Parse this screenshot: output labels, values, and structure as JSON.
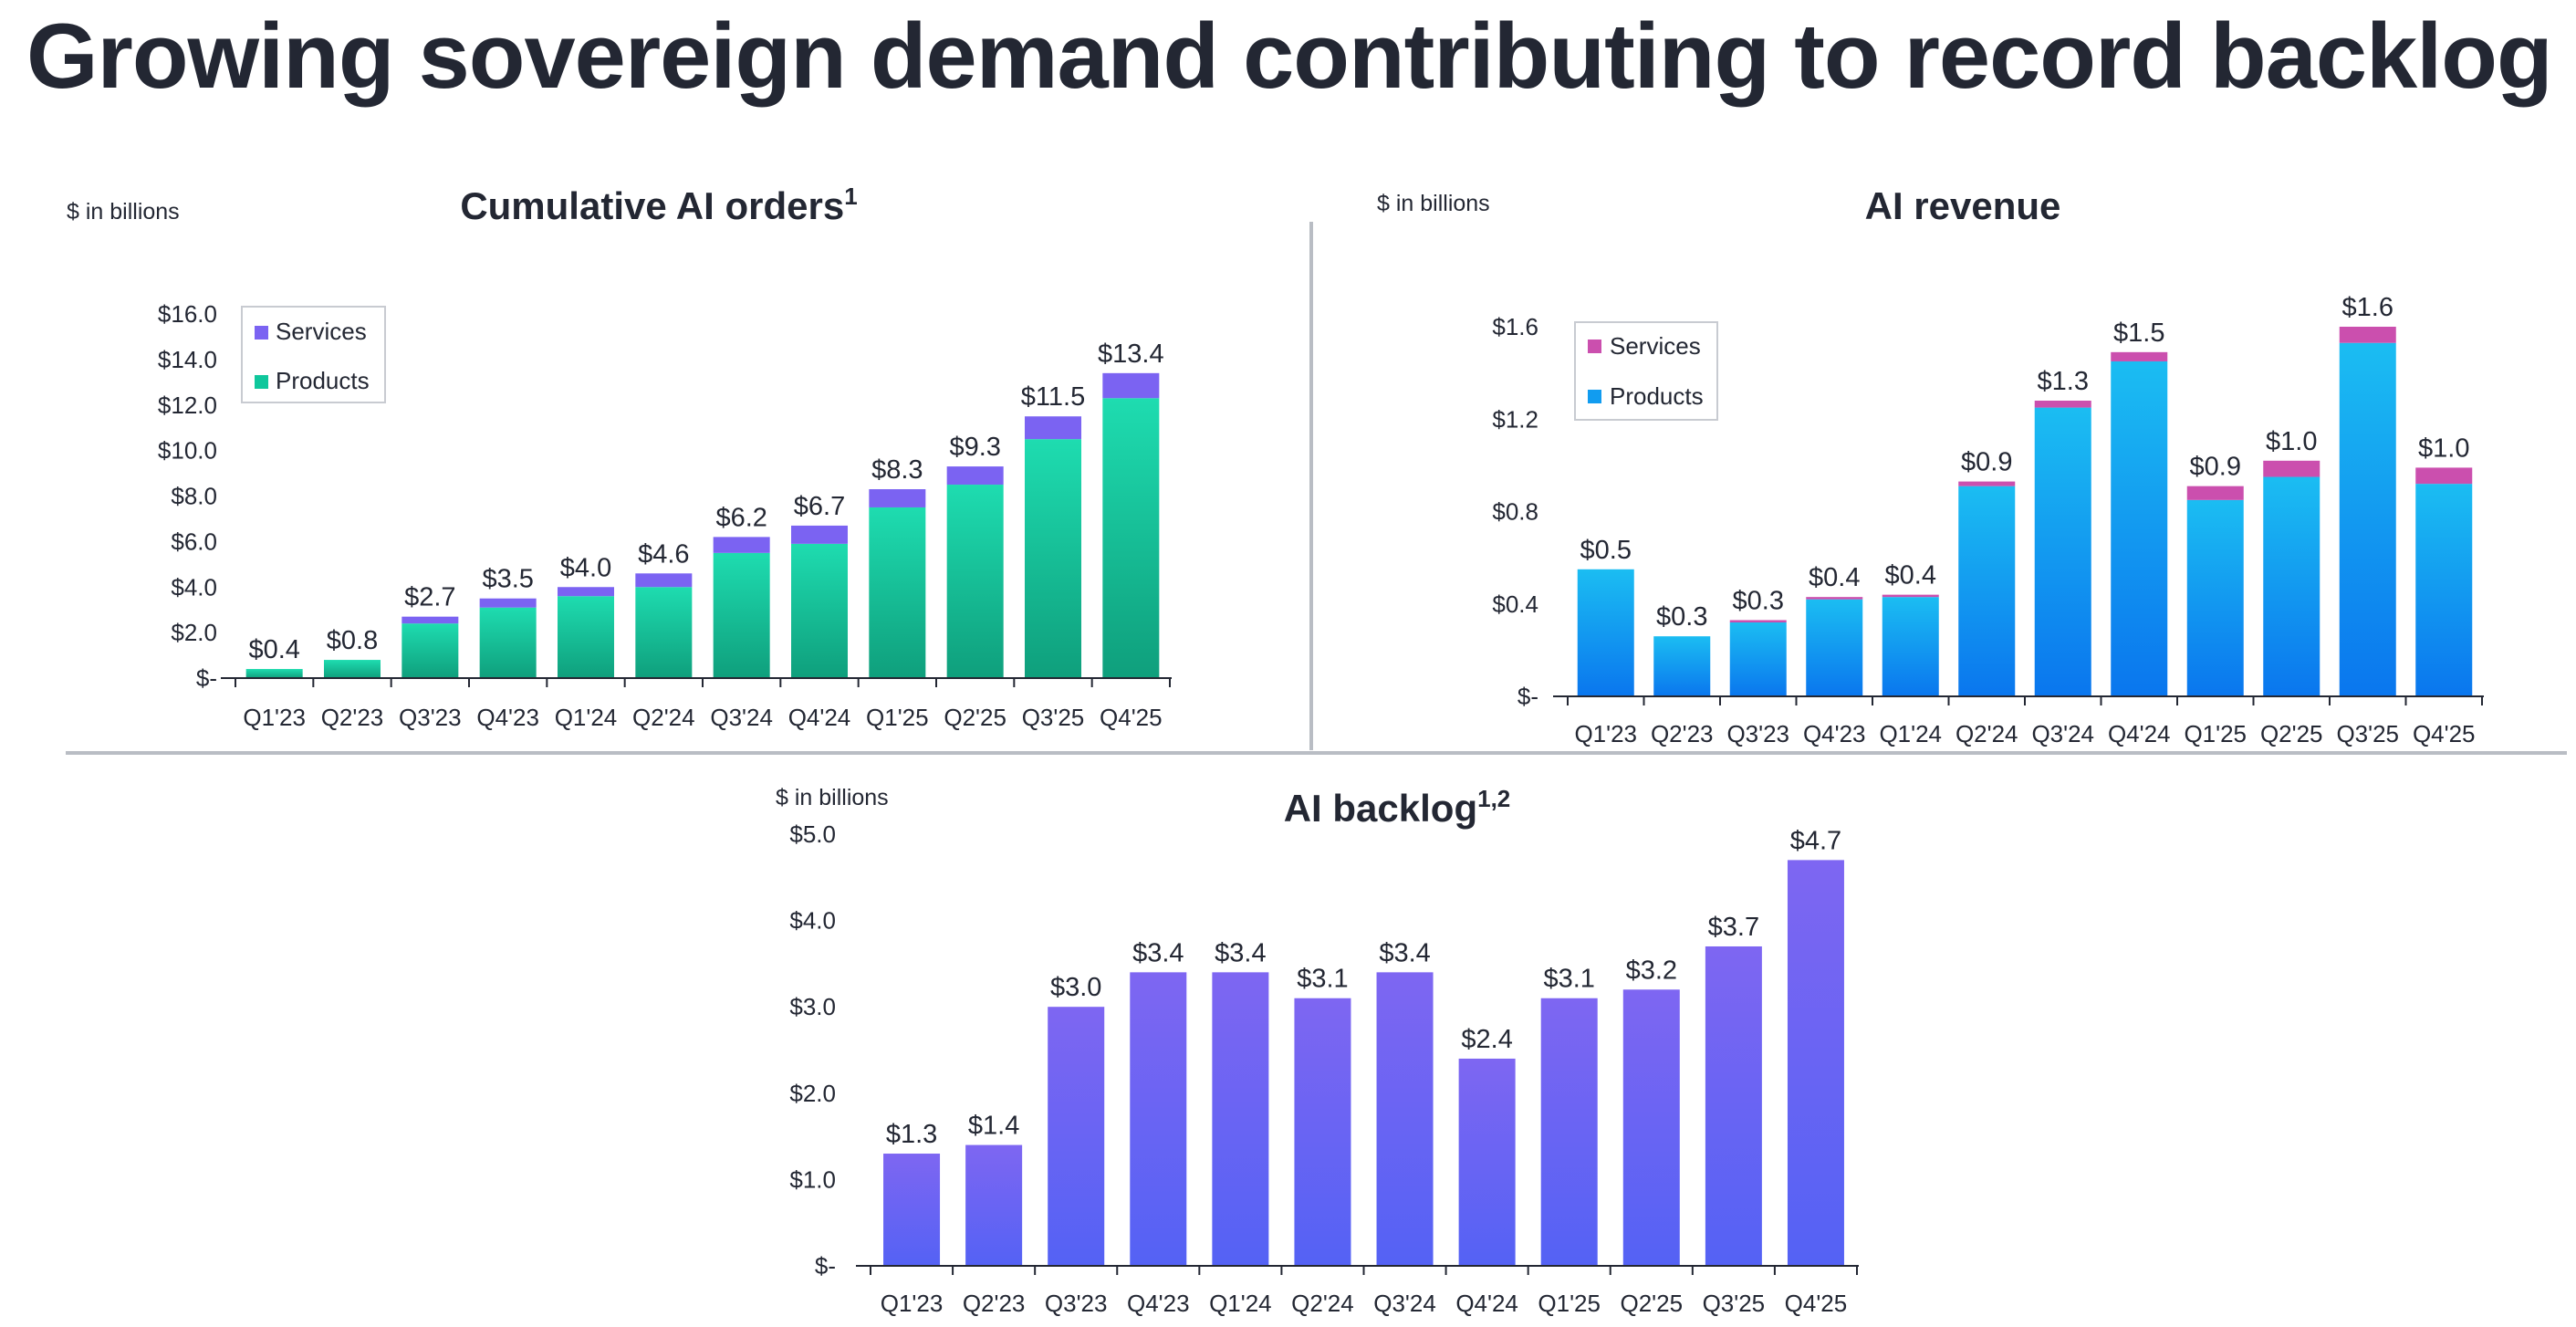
{
  "page_title": "Growing sovereign demand contributing to record backlog",
  "colors": {
    "text": "#232733",
    "divider": "#b9bdc4",
    "axis": "#232733",
    "orders_services": "#7b63f2",
    "orders_products_top": "#1edcb0",
    "orders_products_bottom": "#0f9f7c",
    "revenue_services": "#cb4fae",
    "revenue_products_top": "#1bbdf2",
    "revenue_products_bottom": "#0a76ee",
    "backlog_top": "#7e66f2",
    "backlog_bottom": "#5462f4"
  },
  "chart_data": [
    {
      "id": "orders",
      "type": "bar",
      "stacked": true,
      "title": "Cumulative AI orders",
      "title_superscript": "1",
      "unit_label": "$ in billions",
      "categories": [
        "Q1'23",
        "Q2'23",
        "Q3'23",
        "Q4'23",
        "Q1'24",
        "Q2'24",
        "Q3'24",
        "Q4'24",
        "Q1'25",
        "Q2'25",
        "Q3'25",
        "Q4'25"
      ],
      "series": [
        {
          "name": "Products",
          "values": [
            0.4,
            0.8,
            2.4,
            3.1,
            3.6,
            4.0,
            5.5,
            5.9,
            7.5,
            8.5,
            10.5,
            12.3
          ]
        },
        {
          "name": "Services",
          "values": [
            0.0,
            0.0,
            0.3,
            0.4,
            0.4,
            0.6,
            0.7,
            0.8,
            0.8,
            0.8,
            1.0,
            1.1
          ]
        }
      ],
      "totals": [
        "$0.4",
        "$0.8",
        "$2.7",
        "$3.5",
        "$4.0",
        "$4.6",
        "$6.2",
        "$6.7",
        "$8.3",
        "$9.3",
        "$11.5",
        "$13.4"
      ],
      "ylim": [
        0,
        16
      ],
      "yticks": [
        0,
        2,
        4,
        6,
        8,
        10,
        12,
        14,
        16
      ],
      "ytick_labels": [
        "$-",
        "$2.0",
        "$4.0",
        "$6.0",
        "$8.0",
        "$10.0",
        "$12.0",
        "$14.0",
        "$16.0"
      ],
      "legend": [
        "Services",
        "Products"
      ],
      "legend_position": "top-left",
      "grid": false
    },
    {
      "id": "revenue",
      "type": "bar",
      "stacked": true,
      "title": "AI revenue",
      "title_superscript": "",
      "unit_label": "$ in billions",
      "categories": [
        "Q1'23",
        "Q2'23",
        "Q3'23",
        "Q4'23",
        "Q1'24",
        "Q2'24",
        "Q3'24",
        "Q4'24",
        "Q1'25",
        "Q2'25",
        "Q3'25",
        "Q4'25"
      ],
      "series": [
        {
          "name": "Products",
          "values": [
            0.55,
            0.26,
            0.32,
            0.42,
            0.43,
            0.91,
            1.25,
            1.45,
            0.85,
            0.95,
            1.53,
            0.92
          ]
        },
        {
          "name": "Services",
          "values": [
            0.0,
            0.0,
            0.01,
            0.01,
            0.01,
            0.02,
            0.03,
            0.04,
            0.06,
            0.07,
            0.07,
            0.07
          ]
        }
      ],
      "totals": [
        "$0.5",
        "$0.3",
        "$0.3",
        "$0.4",
        "$0.4",
        "$0.9",
        "$1.3",
        "$1.5",
        "$0.9",
        "$1.0",
        "$1.6",
        "$1.0"
      ],
      "ylim": [
        0,
        1.6
      ],
      "yticks": [
        0,
        0.4,
        0.8,
        1.2,
        1.6
      ],
      "ytick_labels": [
        "$-",
        "$0.4",
        "$0.8",
        "$1.2",
        "$1.6"
      ],
      "legend": [
        "Services",
        "Products"
      ],
      "legend_position": "top-left",
      "grid": false
    },
    {
      "id": "backlog",
      "type": "bar",
      "stacked": false,
      "title": "AI backlog",
      "title_superscript": "1,2",
      "unit_label": "$ in billions",
      "categories": [
        "Q1'23",
        "Q2'23",
        "Q3'23",
        "Q4'23",
        "Q1'24",
        "Q2'24",
        "Q3'24",
        "Q4'24",
        "Q1'25",
        "Q2'25",
        "Q3'25",
        "Q4'25"
      ],
      "series": [
        {
          "name": "Backlog",
          "values": [
            1.3,
            1.4,
            3.0,
            3.4,
            3.4,
            3.1,
            3.4,
            2.4,
            3.1,
            3.2,
            3.7,
            4.7
          ]
        }
      ],
      "totals": [
        "$1.3",
        "$1.4",
        "$3.0",
        "$3.4",
        "$3.4",
        "$3.1",
        "$3.4",
        "$2.4",
        "$3.1",
        "$3.2",
        "$3.7",
        "$4.7"
      ],
      "ylim": [
        0,
        5
      ],
      "yticks": [
        0,
        1,
        2,
        3,
        4,
        5
      ],
      "ytick_labels": [
        "$-",
        "$1.0",
        "$2.0",
        "$3.0",
        "$4.0",
        "$5.0"
      ],
      "grid": false
    }
  ]
}
